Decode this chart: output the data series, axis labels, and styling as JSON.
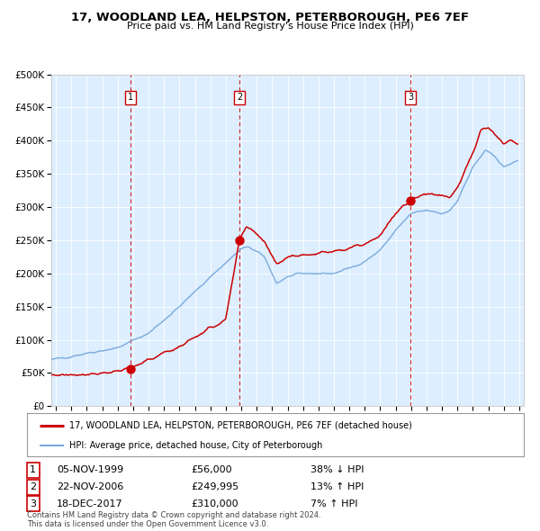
{
  "title": "17, WOODLAND LEA, HELPSTON, PETERBOROUGH, PE6 7EF",
  "subtitle": "Price paid vs. HM Land Registry's House Price Index (HPI)",
  "sale_prices": [
    56000,
    249995,
    310000
  ],
  "sale_labels": [
    "1",
    "2",
    "3"
  ],
  "sale_info": [
    [
      "1",
      "05-NOV-1999",
      "£56,000",
      "38% ↓ HPI"
    ],
    [
      "2",
      "22-NOV-2006",
      "£249,995",
      "13% ↑ HPI"
    ],
    [
      "3",
      "18-DEC-2017",
      "£310,000",
      "7% ↑ HPI"
    ]
  ],
  "legend_line1": "17, WOODLAND LEA, HELPSTON, PETERBOROUGH, PE6 7EF (detached house)",
  "legend_line2": "HPI: Average price, detached house, City of Peterborough",
  "footer_line1": "Contains HM Land Registry data © Crown copyright and database right 2024.",
  "footer_line2": "This data is licensed under the Open Government Licence v3.0.",
  "red_color": "#cc0000",
  "blue_color": "#7aaadd",
  "bg_color": "#ddeeff",
  "ylim": [
    0,
    500000
  ],
  "xlim_start": 1994.7,
  "xlim_end": 2025.3,
  "sale_year_floats": [
    1999.84,
    2006.89,
    2017.96
  ]
}
